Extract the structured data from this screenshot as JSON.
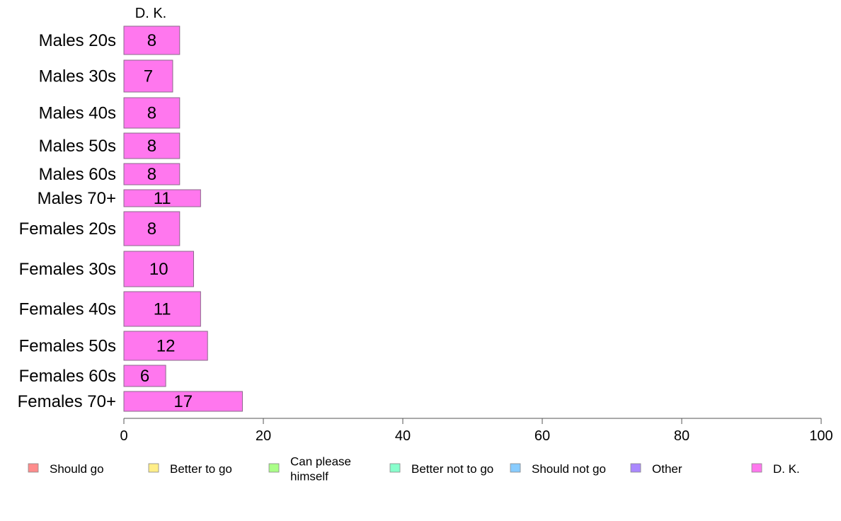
{
  "chart_data": {
    "type": "bar",
    "orientation": "horizontal",
    "stacked": true,
    "title": "",
    "xlabel": "",
    "ylabel": "",
    "xlim": [
      0,
      100
    ],
    "xticks": [
      0,
      20,
      40,
      60,
      80,
      100
    ],
    "grid": false,
    "legend_position": "bottom",
    "column_header": "D. K.",
    "categories": [
      "Males 20s",
      "Males 30s",
      "Males 40s",
      "Males 50s",
      "Males 60s",
      "Males 70+",
      "Females 20s",
      "Females 30s",
      "Females 40s",
      "Females 50s",
      "Females 60s",
      "Females 70+"
    ],
    "series": [
      {
        "name": "Should go",
        "color": "#ff8c8c",
        "values": [
          0,
          0,
          0,
          0,
          0,
          0,
          0,
          0,
          0,
          0,
          0,
          0
        ]
      },
      {
        "name": "Better to go",
        "color": "#ffee88",
        "values": [
          0,
          0,
          0,
          0,
          0,
          0,
          0,
          0,
          0,
          0,
          0,
          0
        ]
      },
      {
        "name": "Can please himself",
        "color": "#aaff88",
        "values": [
          0,
          0,
          0,
          0,
          0,
          0,
          0,
          0,
          0,
          0,
          0,
          0
        ]
      },
      {
        "name": "Better not to go",
        "color": "#88ffcc",
        "values": [
          0,
          0,
          0,
          0,
          0,
          0,
          0,
          0,
          0,
          0,
          0,
          0
        ]
      },
      {
        "name": "Should not go",
        "color": "#88ccff",
        "values": [
          0,
          0,
          0,
          0,
          0,
          0,
          0,
          0,
          0,
          0,
          0,
          0
        ]
      },
      {
        "name": "Other",
        "color": "#aa88ff",
        "values": [
          0,
          0,
          0,
          0,
          0,
          0,
          0,
          0,
          0,
          0,
          0,
          0
        ]
      },
      {
        "name": "D. K.",
        "color": "#ff77ee",
        "values": [
          8,
          7,
          8,
          8,
          8,
          11,
          8,
          10,
          11,
          12,
          6,
          17
        ]
      }
    ],
    "legend": [
      {
        "label_lines": [
          "Should go"
        ],
        "color": "#ff8c8c"
      },
      {
        "label_lines": [
          "Better to go"
        ],
        "color": "#ffee88"
      },
      {
        "label_lines": [
          "Can please",
          "himself"
        ],
        "color": "#aaff88"
      },
      {
        "label_lines": [
          "Better not to go"
        ],
        "color": "#88ffcc"
      },
      {
        "label_lines": [
          "Should not go"
        ],
        "color": "#88ccff"
      },
      {
        "label_lines": [
          "Other"
        ],
        "color": "#aa88ff"
      },
      {
        "label_lines": [
          "D. K."
        ],
        "color": "#ff77ee"
      }
    ]
  }
}
